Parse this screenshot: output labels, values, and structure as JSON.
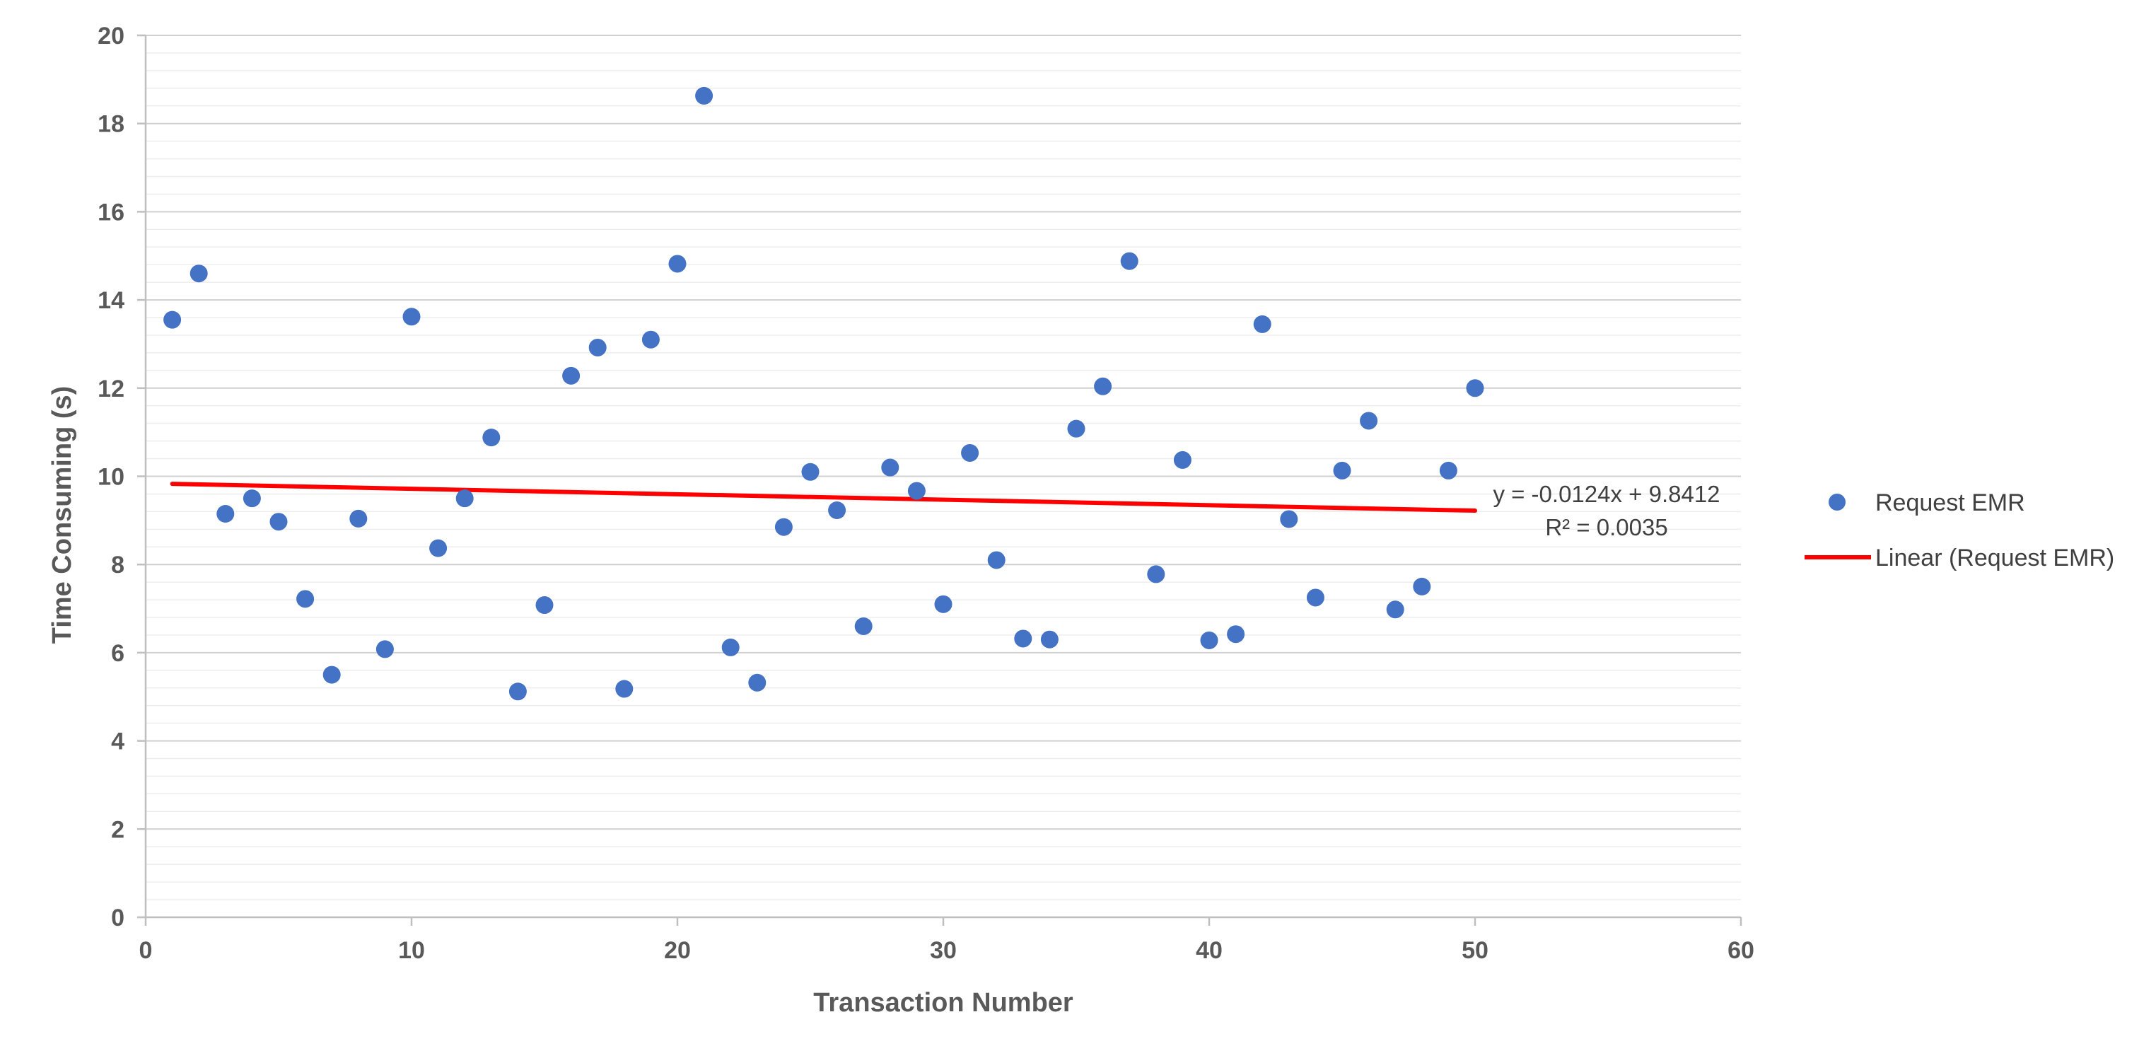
{
  "chart_data": {
    "type": "scatter",
    "xlabel": "Transaction Number",
    "ylabel": "Time Consuming (s)",
    "xlim": [
      0,
      60
    ],
    "ylim": [
      0,
      20
    ],
    "x_ticks": [
      "0",
      "10",
      "20",
      "30",
      "40",
      "50",
      "60"
    ],
    "y_ticks": [
      "0",
      "2",
      "4",
      "6",
      "8",
      "10",
      "12",
      "14",
      "16",
      "18",
      "20"
    ],
    "grid": true,
    "legend_position": "right",
    "series": [
      {
        "name": "Request EMR",
        "color": "#4472C4",
        "marker": "circle",
        "x": [
          1,
          2,
          3,
          4,
          5,
          6,
          7,
          8,
          9,
          10,
          11,
          12,
          13,
          14,
          15,
          16,
          17,
          18,
          19,
          20,
          21,
          22,
          23,
          24,
          25,
          26,
          27,
          28,
          29,
          30,
          31,
          32,
          33,
          34,
          35,
          36,
          37,
          38,
          39,
          40,
          41,
          42,
          43,
          44,
          45,
          46,
          47,
          48,
          49,
          50
        ],
        "y": [
          13.55,
          14.6,
          9.15,
          9.5,
          8.97,
          7.22,
          5.5,
          9.04,
          6.08,
          13.62,
          8.37,
          9.5,
          10.88,
          5.12,
          7.08,
          12.28,
          12.92,
          5.18,
          13.1,
          14.82,
          18.63,
          6.12,
          5.32,
          8.85,
          10.1,
          9.23,
          6.6,
          10.2,
          9.67,
          7.1,
          10.53,
          8.1,
          6.32,
          6.3,
          11.08,
          12.04,
          14.88,
          7.78,
          10.37,
          6.28,
          6.42,
          13.45,
          9.03,
          7.25,
          10.13,
          11.26,
          6.98,
          7.5,
          10.13,
          12.0
        ]
      }
    ],
    "trendline": {
      "name": "Linear (Request EMR)",
      "color": "#FF0000",
      "slope": -0.0124,
      "intercept": 9.8412,
      "x_range": [
        1,
        50
      ],
      "equation": "y = -0.0124x + 9.8412",
      "r_squared": "R² = 0.0035"
    }
  }
}
